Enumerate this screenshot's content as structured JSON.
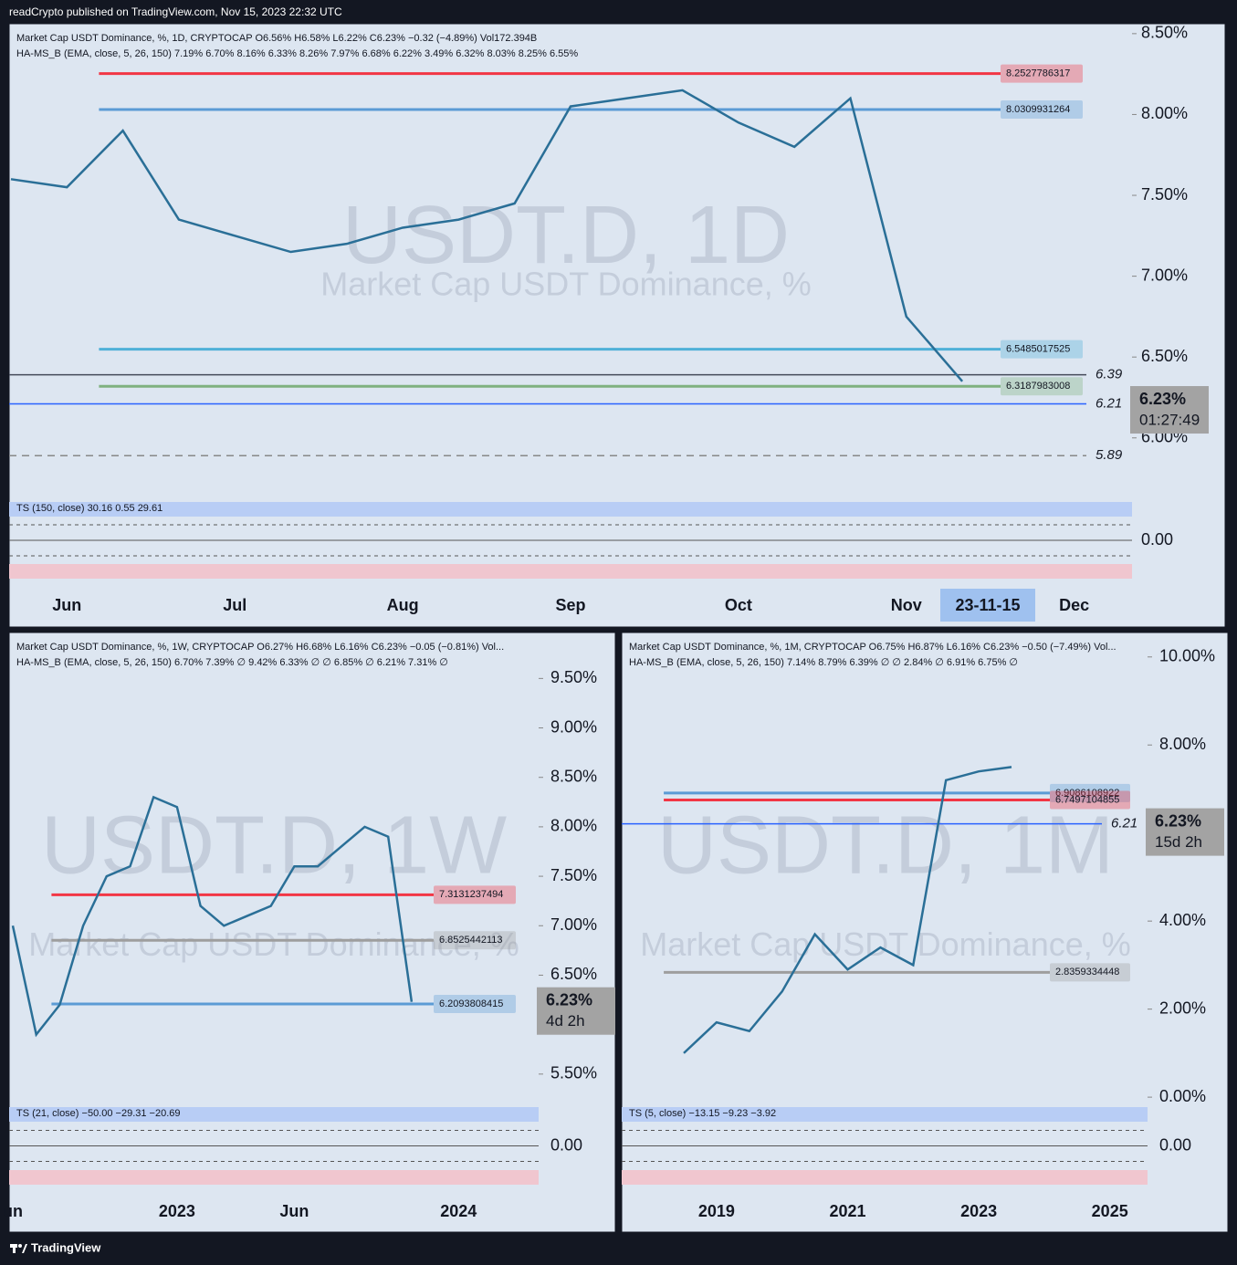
{
  "header": "readCrypto published on TradingView.com, Nov 15, 2023 22:32 UTC",
  "footer": "TradingView",
  "chart_data": [
    {
      "type": "line",
      "legend_lines": [
        "Market Cap USDT Dominance, %, 1D, CRYPTOCAP  O6.56%  H6.58%  L6.22%  C6.23%  −0.32 (−4.89%)  Vol172.394B",
        "HA-MS_B (EMA, close, 5, 26, 150)  7.19%  6.70%  8.16%  6.33%  8.26%  7.97%  6.68%  6.22%  3.49%  6.32%  8.03%  8.25%  6.55%"
      ],
      "watermark": "USDT.D, 1D",
      "watermark_sub": "Market Cap USDT Dominance, %",
      "categories": [
        null,
        "Jun",
        null,
        null,
        "Jul",
        null,
        null,
        "Aug",
        null,
        null,
        "Sep",
        null,
        null,
        "Oct",
        null,
        null,
        "Nov",
        null,
        null,
        "Dec"
      ],
      "series": [
        {
          "name": "USDT.D",
          "color": "#2a6f97",
          "values": [
            7.6,
            7.55,
            7.9,
            7.35,
            7.25,
            7.15,
            7.2,
            7.3,
            7.35,
            7.45,
            8.05,
            8.1,
            8.15,
            7.95,
            7.8,
            8.1,
            6.75,
            6.35,
            null,
            null
          ]
        }
      ],
      "ylim": [
        5.66,
        8.55
      ],
      "yticks": [
        {
          "value": 6,
          "label": "6.00%"
        },
        {
          "value": 6.5,
          "label": "6.50%"
        },
        {
          "value": 7,
          "label": "7.00%"
        },
        {
          "value": 7.5,
          "label": "7.50%"
        },
        {
          "value": 8,
          "label": "8.00%"
        },
        {
          "value": 8.5,
          "label": "8.50%"
        }
      ],
      "levels": [
        {
          "value": 8.2527786317,
          "color": "#f23645",
          "boxed": true
        },
        {
          "value": 8.0309931264,
          "color": "#5b9bd5",
          "boxed": true
        },
        {
          "value": 6.5485017525,
          "color": "#4fb0d8",
          "boxed": true
        },
        {
          "value": 6.3187983008,
          "color": "#7fb17f",
          "boxed": true
        },
        {
          "value": 6.39,
          "color": "#444a5a",
          "boxed": false
        },
        {
          "value": 6.21,
          "color": "#2962ff",
          "boxed": false
        },
        {
          "value": 5.89,
          "color": "#888888",
          "boxed": false,
          "dashed": true
        }
      ],
      "last_price": {
        "value": 6.23,
        "label": "6.23%",
        "countdown": "01:27:49"
      },
      "cursor_label": "23-11-15",
      "oscillator": {
        "title": "TS (150, close)  30.16  0.55  29.61",
        "zero_label": "0.00"
      }
    },
    {
      "type": "line",
      "legend_lines": [
        "Market Cap USDT Dominance, %, 1W, CRYPTOCAP  O6.27%  H6.68%  L6.16%  C6.23%  −0.05 (−0.81%)  Vol...",
        "HA-MS_B (EMA, close, 5, 26, 150)  6.70%  7.39%  ∅  9.42%  6.33%  ∅  ∅  6.85%  ∅  6.21%  7.31%  ∅"
      ],
      "watermark": "USDT.D, 1W",
      "watermark_sub": "Market Cap USDT Dominance, %",
      "categories": [
        "un",
        null,
        null,
        null,
        null,
        null,
        null,
        "2023",
        null,
        null,
        null,
        null,
        "Jun",
        null,
        null,
        null,
        null,
        null,
        null,
        "2024",
        null
      ],
      "series": [
        {
          "name": "USDT.D",
          "color": "#2a6f97",
          "values": [
            7.0,
            5.9,
            6.2,
            7.0,
            7.5,
            7.6,
            8.3,
            8.2,
            7.2,
            7.0,
            7.1,
            7.2,
            7.6,
            7.6,
            7.8,
            8.0,
            7.9,
            6.23,
            null,
            null,
            null
          ]
        }
      ],
      "ylim": [
        5.24,
        9.9
      ],
      "yticks": [
        {
          "value": 5.5,
          "label": "5.50%"
        },
        {
          "value": 6.5,
          "label": "6.50%"
        },
        {
          "value": 7,
          "label": "7.00%"
        },
        {
          "value": 7.5,
          "label": "7.50%"
        },
        {
          "value": 8,
          "label": "8.00%"
        },
        {
          "value": 8.5,
          "label": "8.50%"
        },
        {
          "value": 9,
          "label": "9.00%"
        },
        {
          "value": 9.5,
          "label": "9.50%"
        }
      ],
      "levels": [
        {
          "value": 7.3131237494,
          "color": "#f23645",
          "boxed": true
        },
        {
          "value": 6.8525442113,
          "color": "#9e9e9e",
          "boxed": true
        },
        {
          "value": 6.2093808415,
          "color": "#5b9bd5",
          "boxed": true
        }
      ],
      "last_price": {
        "value": 6.23,
        "label": "6.23%",
        "countdown": "4d 2h"
      },
      "oscillator": {
        "title": "TS (21, close)  −50.00  −29.31  −20.69",
        "zero_label": "0.00"
      }
    },
    {
      "type": "line",
      "legend_lines": [
        "Market Cap USDT Dominance, %, 1M, CRYPTOCAP  O6.75%  H6.87%  L6.16%  C6.23%  −0.50 (−7.49%)  Vol...",
        "HA-MS_B (EMA, close, 5, 26, 150)  7.14%  8.79%  6.39%  ∅  ∅  2.84%  ∅  6.91%  6.75%  ∅"
      ],
      "watermark": "USDT.D, 1M",
      "watermark_sub": "Market Cap USDT Dominance, %",
      "categories": [
        null,
        "2019",
        null,
        null,
        null,
        "2021",
        null,
        null,
        null,
        "2023",
        null,
        null,
        null,
        "2025"
      ],
      "series": [
        {
          "name": "USDT.D",
          "color": "#2a6f97",
          "values": [
            1.0,
            1.7,
            1.5,
            2.4,
            3.7,
            2.9,
            3.4,
            3.0,
            7.2,
            7.4,
            7.5,
            null,
            null,
            null
          ]
        }
      ],
      "ylim": [
        -0.06,
        10.41
      ],
      "yticks": [
        {
          "value": 0,
          "label": "0.00%"
        },
        {
          "value": 2,
          "label": "2.00%"
        },
        {
          "value": 4,
          "label": "4.00%"
        },
        {
          "value": 8,
          "label": "8.00%"
        },
        {
          "value": 10,
          "label": "10.00%"
        }
      ],
      "levels": [
        {
          "value": 6.9086108922,
          "color": "#5b9bd5",
          "boxed": true
        },
        {
          "value": 6.7497104855,
          "color": "#f23645",
          "boxed": true
        },
        {
          "value": 2.8359334448,
          "color": "#9e9e9e",
          "boxed": true
        },
        {
          "value": 6.21,
          "color": "#2962ff",
          "boxed": false
        }
      ],
      "last_price": {
        "value": 6.23,
        "label": "6.23%",
        "countdown": "15d 2h"
      },
      "oscillator": {
        "title": "TS (5, close)  −13.15  −9.23  −3.92",
        "zero_label": "0.00"
      }
    }
  ]
}
